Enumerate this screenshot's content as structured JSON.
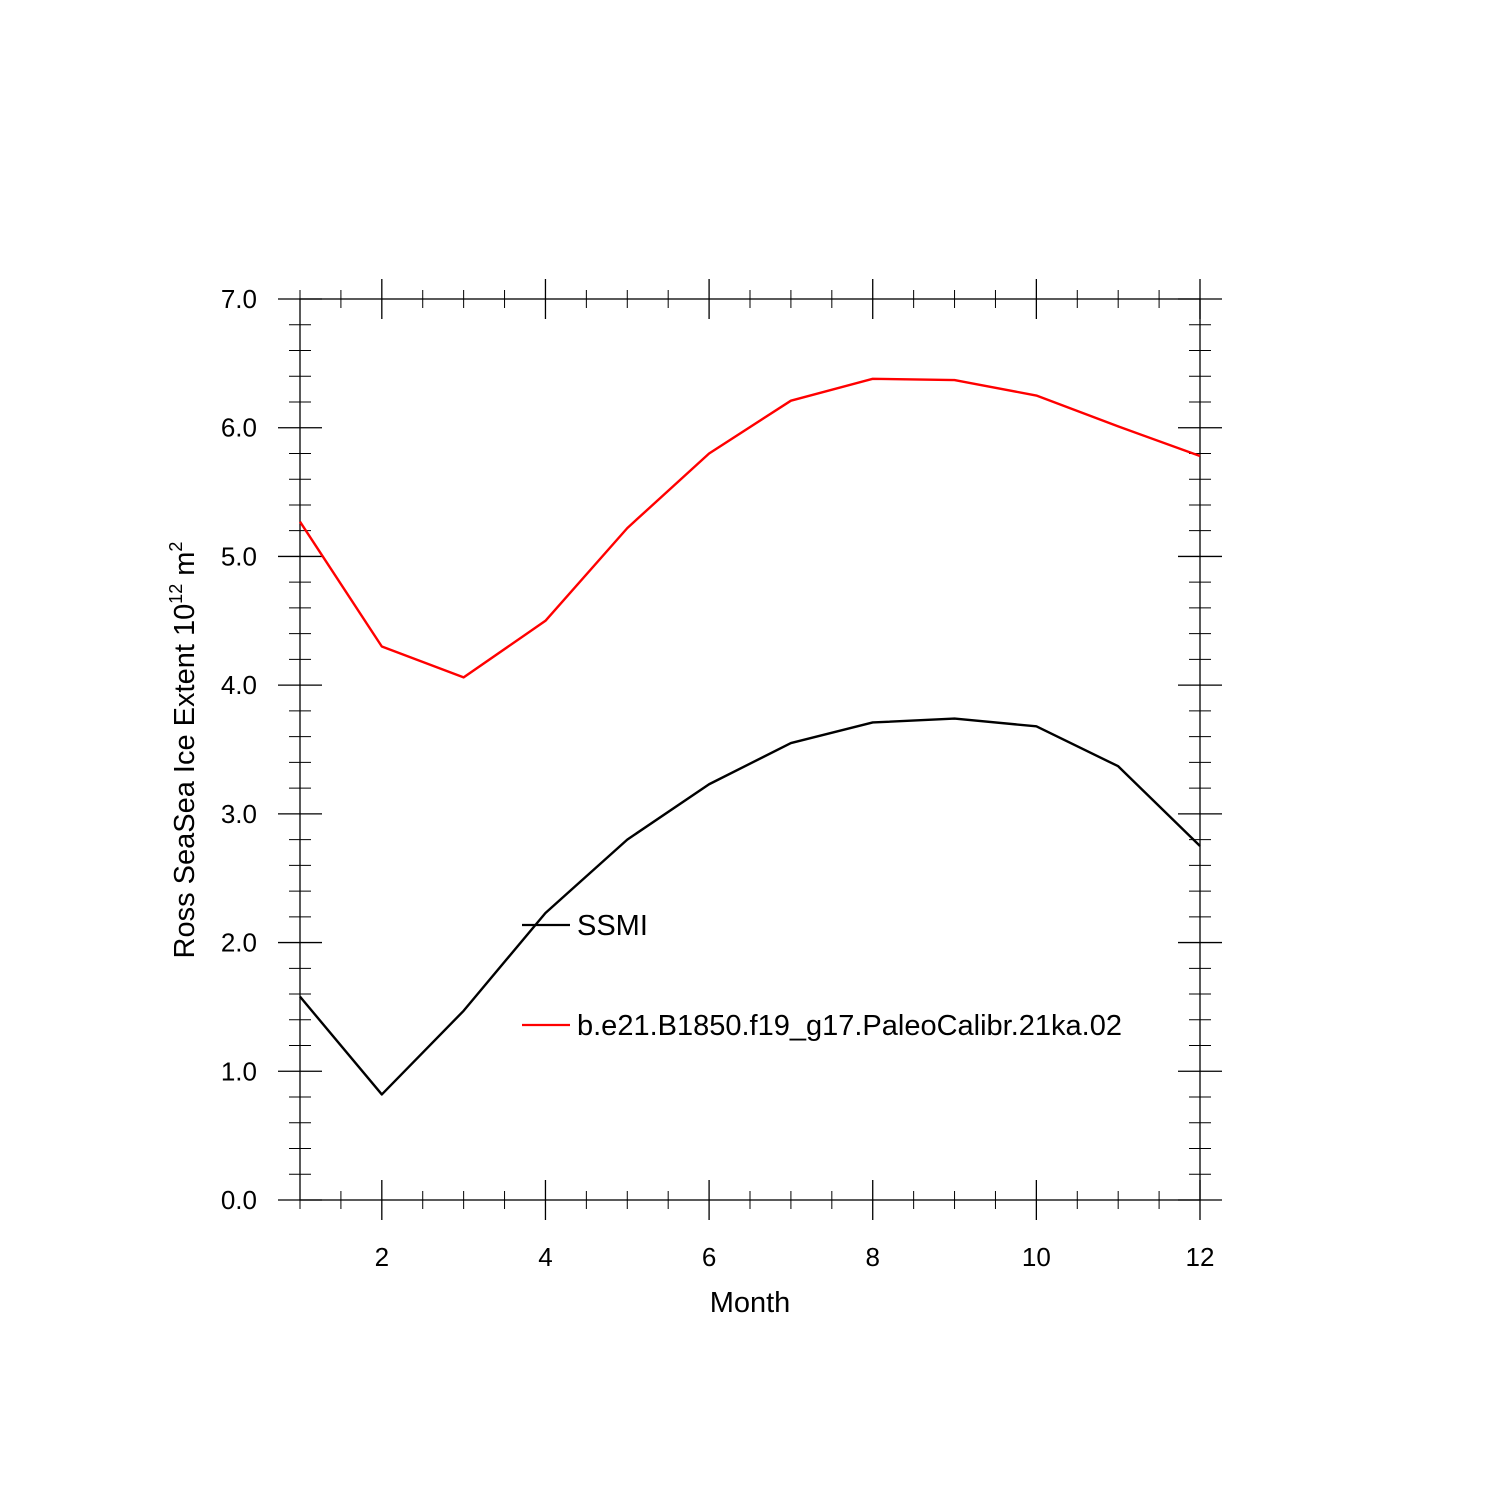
{
  "chart_data": {
    "type": "line",
    "title": "",
    "xlabel": "Month",
    "ylabel": {
      "text": "Ross SeaSea Ice Extent 10",
      "sup1": "12",
      "unit": " m",
      "sup2": "2"
    },
    "xlim": [
      1,
      12
    ],
    "ylim": [
      0,
      7
    ],
    "xticks": [
      2,
      4,
      6,
      8,
      10,
      12
    ],
    "xtick_labels": [
      "2",
      "4",
      "6",
      "8",
      "10",
      "12"
    ],
    "yticks": [
      0,
      1,
      2,
      3,
      4,
      5,
      6,
      7
    ],
    "ytick_labels": [
      "0.0",
      "1.0",
      "2.0",
      "3.0",
      "4.0",
      "5.0",
      "6.0",
      "7.0"
    ],
    "grid": false,
    "legend_position": "inside-center",
    "x": [
      1,
      2,
      3,
      4,
      5,
      6,
      7,
      8,
      9,
      10,
      11,
      12
    ],
    "series": [
      {
        "name": "SSMI",
        "color": "#000000",
        "values": [
          1.58,
          0.82,
          1.47,
          2.23,
          2.8,
          3.23,
          3.55,
          3.71,
          3.74,
          3.68,
          3.37,
          2.75
        ]
      },
      {
        "name": "b.e21.B1850.f19_g17.PaleoCalibr.21ka.02",
        "color": "#ff0000",
        "values": [
          5.27,
          4.3,
          4.06,
          4.5,
          5.22,
          5.8,
          6.21,
          6.38,
          6.37,
          6.25,
          6.01,
          5.78
        ]
      }
    ]
  }
}
